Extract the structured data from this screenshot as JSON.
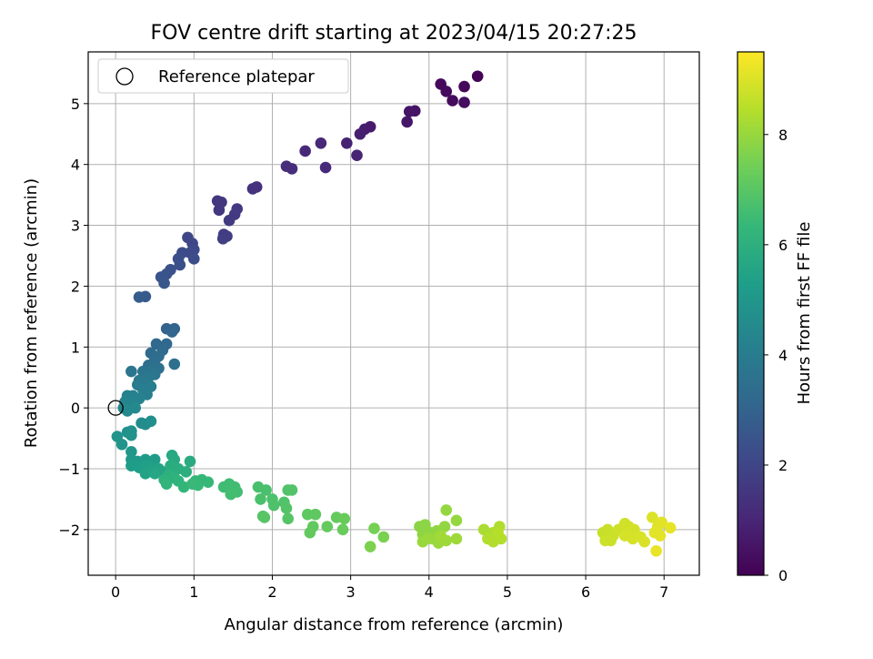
{
  "chart_data": {
    "type": "scatter",
    "title": "FOV centre drift starting at 2023/04/15 20:27:25",
    "xlabel": "Angular distance from reference (arcmin)",
    "ylabel": "Rotation from reference (arcmin)",
    "xlim": [
      -0.35,
      7.45
    ],
    "ylim": [
      -2.75,
      5.85
    ],
    "xticks": [
      "0",
      "1",
      "2",
      "3",
      "4",
      "5",
      "6",
      "7"
    ],
    "yticks": [
      "−2",
      "−1",
      "0",
      "1",
      "2",
      "3",
      "4",
      "5"
    ],
    "grid": true,
    "legend": {
      "placement": "top-left",
      "label": "Reference platepar"
    },
    "reference_point": {
      "x": 0,
      "y": 0
    },
    "colorbar": {
      "label": "Hours from first FF file",
      "colormap": "viridis",
      "range": [
        0,
        9.5
      ],
      "ticks": [
        "0",
        "2",
        "4",
        "6",
        "8"
      ],
      "colors": [
        "#440154",
        "#482878",
        "#3e4989",
        "#31688e",
        "#26828e",
        "#1f9e89",
        "#35b779",
        "#6ece58",
        "#b5de2b",
        "#fde725"
      ]
    },
    "points": [
      {
        "x": 4.62,
        "y": 5.45,
        "t": 0.1
      },
      {
        "x": 4.45,
        "y": 5.28,
        "t": 0.15
      },
      {
        "x": 4.15,
        "y": 5.32,
        "t": 0.2
      },
      {
        "x": 4.22,
        "y": 5.2,
        "t": 0.25
      },
      {
        "x": 4.3,
        "y": 5.05,
        "t": 0.3
      },
      {
        "x": 4.45,
        "y": 5.02,
        "t": 0.35
      },
      {
        "x": 3.82,
        "y": 4.88,
        "t": 0.5
      },
      {
        "x": 3.75,
        "y": 4.87,
        "t": 0.55
      },
      {
        "x": 3.72,
        "y": 4.7,
        "t": 0.6
      },
      {
        "x": 3.25,
        "y": 4.62,
        "t": 0.7
      },
      {
        "x": 3.18,
        "y": 4.58,
        "t": 0.75
      },
      {
        "x": 3.12,
        "y": 4.5,
        "t": 0.8
      },
      {
        "x": 2.95,
        "y": 4.35,
        "t": 0.9
      },
      {
        "x": 3.08,
        "y": 4.15,
        "t": 0.95
      },
      {
        "x": 2.62,
        "y": 4.35,
        "t": 1.05
      },
      {
        "x": 2.42,
        "y": 4.22,
        "t": 1.1
      },
      {
        "x": 2.68,
        "y": 3.95,
        "t": 1.15
      },
      {
        "x": 2.18,
        "y": 3.97,
        "t": 1.2
      },
      {
        "x": 2.25,
        "y": 3.93,
        "t": 1.25
      },
      {
        "x": 1.8,
        "y": 3.63,
        "t": 1.35
      },
      {
        "x": 1.75,
        "y": 3.6,
        "t": 1.4
      },
      {
        "x": 1.3,
        "y": 3.4,
        "t": 1.5
      },
      {
        "x": 1.35,
        "y": 3.38,
        "t": 1.52
      },
      {
        "x": 1.32,
        "y": 3.25,
        "t": 1.55
      },
      {
        "x": 1.55,
        "y": 3.27,
        "t": 1.6
      },
      {
        "x": 1.52,
        "y": 3.18,
        "t": 1.62
      },
      {
        "x": 1.45,
        "y": 3.08,
        "t": 1.65
      },
      {
        "x": 1.38,
        "y": 2.85,
        "t": 1.7
      },
      {
        "x": 1.42,
        "y": 2.82,
        "t": 1.72
      },
      {
        "x": 1.37,
        "y": 2.78,
        "t": 1.75
      },
      {
        "x": 0.92,
        "y": 2.8,
        "t": 2.0
      },
      {
        "x": 0.98,
        "y": 2.7,
        "t": 2.05
      },
      {
        "x": 1.0,
        "y": 2.6,
        "t": 2.1
      },
      {
        "x": 0.95,
        "y": 2.55,
        "t": 2.15
      },
      {
        "x": 0.85,
        "y": 2.55,
        "t": 2.2
      },
      {
        "x": 1.0,
        "y": 2.45,
        "t": 2.25
      },
      {
        "x": 0.8,
        "y": 2.45,
        "t": 2.3
      },
      {
        "x": 0.82,
        "y": 2.35,
        "t": 2.35
      },
      {
        "x": 0.7,
        "y": 2.27,
        "t": 2.4
      },
      {
        "x": 0.65,
        "y": 2.2,
        "t": 2.45
      },
      {
        "x": 0.58,
        "y": 2.15,
        "t": 2.5
      },
      {
        "x": 0.62,
        "y": 2.05,
        "t": 2.55
      },
      {
        "x": 0.38,
        "y": 1.83,
        "t": 2.7
      },
      {
        "x": 0.3,
        "y": 1.82,
        "t": 2.75
      },
      {
        "x": 0.65,
        "y": 1.3,
        "t": 3.0
      },
      {
        "x": 0.75,
        "y": 1.3,
        "t": 3.05
      },
      {
        "x": 0.72,
        "y": 1.25,
        "t": 3.1
      },
      {
        "x": 0.65,
        "y": 1.05,
        "t": 3.15
      },
      {
        "x": 0.52,
        "y": 1.05,
        "t": 3.2
      },
      {
        "x": 0.6,
        "y": 0.95,
        "t": 3.25
      },
      {
        "x": 0.45,
        "y": 0.9,
        "t": 3.3
      },
      {
        "x": 0.55,
        "y": 0.85,
        "t": 3.35
      },
      {
        "x": 0.5,
        "y": 0.78,
        "t": 3.4
      },
      {
        "x": 0.42,
        "y": 0.7,
        "t": 3.45
      },
      {
        "x": 0.75,
        "y": 0.72,
        "t": 3.5
      },
      {
        "x": 0.55,
        "y": 0.65,
        "t": 3.55
      },
      {
        "x": 0.45,
        "y": 0.62,
        "t": 3.6
      },
      {
        "x": 0.35,
        "y": 0.6,
        "t": 3.65
      },
      {
        "x": 0.2,
        "y": 0.6,
        "t": 3.7
      },
      {
        "x": 0.5,
        "y": 0.55,
        "t": 3.75
      },
      {
        "x": 0.42,
        "y": 0.5,
        "t": 3.8
      },
      {
        "x": 0.3,
        "y": 0.45,
        "t": 3.85
      },
      {
        "x": 0.38,
        "y": 0.4,
        "t": 3.9
      },
      {
        "x": 0.28,
        "y": 0.38,
        "t": 3.95
      },
      {
        "x": 0.45,
        "y": 0.35,
        "t": 4.0
      },
      {
        "x": 0.35,
        "y": 0.3,
        "t": 4.05
      },
      {
        "x": 0.4,
        "y": 0.22,
        "t": 4.1
      },
      {
        "x": 0.22,
        "y": 0.2,
        "t": 4.15
      },
      {
        "x": 0.15,
        "y": 0.2,
        "t": 4.2
      },
      {
        "x": 0.3,
        "y": 0.15,
        "t": 4.25
      },
      {
        "x": 0.12,
        "y": 0.1,
        "t": 4.3
      },
      {
        "x": 0.2,
        "y": 0.05,
        "t": 4.35
      },
      {
        "x": 0.1,
        "y": 0.0,
        "t": 4.4
      },
      {
        "x": 0.15,
        "y": -0.05,
        "t": 4.45
      },
      {
        "x": 0.25,
        "y": 0.0,
        "t": 4.5
      },
      {
        "x": 0.33,
        "y": -0.25,
        "t": 4.6
      },
      {
        "x": 0.38,
        "y": -0.27,
        "t": 4.65
      },
      {
        "x": 0.45,
        "y": -0.22,
        "t": 4.7
      },
      {
        "x": 0.15,
        "y": -0.4,
        "t": 4.75
      },
      {
        "x": 0.2,
        "y": -0.38,
        "t": 4.8
      },
      {
        "x": 0.2,
        "y": -0.45,
        "t": 4.85
      },
      {
        "x": 0.02,
        "y": -0.47,
        "t": 4.9
      },
      {
        "x": 0.08,
        "y": -0.6,
        "t": 4.95
      },
      {
        "x": 0.2,
        "y": -0.72,
        "t": 5.0
      },
      {
        "x": 0.2,
        "y": -0.85,
        "t": 5.05
      },
      {
        "x": 0.28,
        "y": -0.88,
        "t": 5.1
      },
      {
        "x": 0.38,
        "y": -0.85,
        "t": 5.15
      },
      {
        "x": 0.5,
        "y": -0.85,
        "t": 5.2
      },
      {
        "x": 0.2,
        "y": -0.95,
        "t": 5.25
      },
      {
        "x": 0.3,
        "y": -0.98,
        "t": 5.3
      },
      {
        "x": 0.4,
        "y": -0.95,
        "t": 5.35
      },
      {
        "x": 0.45,
        "y": -1.02,
        "t": 5.4
      },
      {
        "x": 0.38,
        "y": -1.08,
        "t": 5.45
      },
      {
        "x": 0.55,
        "y": -1.0,
        "t": 5.5
      },
      {
        "x": 0.6,
        "y": -1.05,
        "t": 5.55
      },
      {
        "x": 0.5,
        "y": -1.08,
        "t": 5.6
      },
      {
        "x": 0.72,
        "y": -0.78,
        "t": 5.7
      },
      {
        "x": 0.75,
        "y": -0.85,
        "t": 5.75
      },
      {
        "x": 0.95,
        "y": -0.88,
        "t": 5.8
      },
      {
        "x": 0.7,
        "y": -0.95,
        "t": 5.85
      },
      {
        "x": 0.8,
        "y": -1.0,
        "t": 5.9
      },
      {
        "x": 0.9,
        "y": -1.05,
        "t": 5.95
      },
      {
        "x": 0.68,
        "y": -1.1,
        "t": 6.0
      },
      {
        "x": 0.75,
        "y": -1.15,
        "t": 6.05
      },
      {
        "x": 0.62,
        "y": -1.18,
        "t": 6.1
      },
      {
        "x": 0.8,
        "y": -1.2,
        "t": 6.15
      },
      {
        "x": 0.65,
        "y": -1.25,
        "t": 6.2
      },
      {
        "x": 0.87,
        "y": -1.3,
        "t": 6.25
      },
      {
        "x": 1.02,
        "y": -1.2,
        "t": 6.3
      },
      {
        "x": 1.1,
        "y": -1.18,
        "t": 6.32
      },
      {
        "x": 1.18,
        "y": -1.22,
        "t": 6.35
      },
      {
        "x": 1.05,
        "y": -1.27,
        "t": 6.38
      },
      {
        "x": 0.98,
        "y": -1.25,
        "t": 6.4
      },
      {
        "x": 1.45,
        "y": -1.25,
        "t": 6.5
      },
      {
        "x": 1.38,
        "y": -1.3,
        "t": 6.52
      },
      {
        "x": 1.52,
        "y": -1.3,
        "t": 6.55
      },
      {
        "x": 1.55,
        "y": -1.38,
        "t": 6.58
      },
      {
        "x": 1.47,
        "y": -1.42,
        "t": 6.6
      },
      {
        "x": 1.82,
        "y": -1.3,
        "t": 6.7
      },
      {
        "x": 1.92,
        "y": -1.35,
        "t": 6.72
      },
      {
        "x": 1.85,
        "y": -1.5,
        "t": 6.75
      },
      {
        "x": 2.0,
        "y": -1.5,
        "t": 6.78
      },
      {
        "x": 2.02,
        "y": -1.6,
        "t": 6.8
      },
      {
        "x": 2.15,
        "y": -1.55,
        "t": 6.82
      },
      {
        "x": 2.2,
        "y": -1.35,
        "t": 6.85
      },
      {
        "x": 2.25,
        "y": -1.35,
        "t": 6.87
      },
      {
        "x": 2.18,
        "y": -1.65,
        "t": 6.9
      },
      {
        "x": 2.2,
        "y": -1.82,
        "t": 6.92
      },
      {
        "x": 1.88,
        "y": -1.78,
        "t": 6.95
      },
      {
        "x": 1.9,
        "y": -1.8,
        "t": 6.97
      },
      {
        "x": 2.45,
        "y": -1.75,
        "t": 7.1
      },
      {
        "x": 2.55,
        "y": -1.75,
        "t": 7.12
      },
      {
        "x": 2.52,
        "y": -1.95,
        "t": 7.15
      },
      {
        "x": 2.48,
        "y": -2.05,
        "t": 7.18
      },
      {
        "x": 2.7,
        "y": -1.95,
        "t": 7.2
      },
      {
        "x": 2.82,
        "y": -1.8,
        "t": 7.22
      },
      {
        "x": 2.92,
        "y": -1.82,
        "t": 7.25
      },
      {
        "x": 2.9,
        "y": -2.0,
        "t": 7.27
      },
      {
        "x": 3.3,
        "y": -1.98,
        "t": 7.5
      },
      {
        "x": 3.42,
        "y": -2.12,
        "t": 7.55
      },
      {
        "x": 3.25,
        "y": -2.28,
        "t": 7.6
      },
      {
        "x": 3.88,
        "y": -1.95,
        "t": 7.8
      },
      {
        "x": 3.95,
        "y": -1.92,
        "t": 7.82
      },
      {
        "x": 4.02,
        "y": -2.05,
        "t": 7.85
      },
      {
        "x": 3.92,
        "y": -2.08,
        "t": 7.88
      },
      {
        "x": 4.1,
        "y": -2.02,
        "t": 7.9
      },
      {
        "x": 4.2,
        "y": -1.95,
        "t": 7.92
      },
      {
        "x": 4.22,
        "y": -1.68,
        "t": 7.95
      },
      {
        "x": 4.35,
        "y": -1.85,
        "t": 7.97
      },
      {
        "x": 4.05,
        "y": -2.15,
        "t": 8.0
      },
      {
        "x": 3.92,
        "y": -2.2,
        "t": 8.02
      },
      {
        "x": 3.98,
        "y": -2.15,
        "t": 8.05
      },
      {
        "x": 4.12,
        "y": -2.22,
        "t": 8.08
      },
      {
        "x": 4.22,
        "y": -2.18,
        "t": 8.1
      },
      {
        "x": 4.35,
        "y": -2.15,
        "t": 8.12
      },
      {
        "x": 4.15,
        "y": -2.1,
        "t": 8.15
      },
      {
        "x": 4.7,
        "y": -2.0,
        "t": 8.3
      },
      {
        "x": 4.82,
        "y": -2.05,
        "t": 8.32
      },
      {
        "x": 4.9,
        "y": -1.95,
        "t": 8.35
      },
      {
        "x": 4.75,
        "y": -2.15,
        "t": 8.38
      },
      {
        "x": 4.82,
        "y": -2.2,
        "t": 8.4
      },
      {
        "x": 4.92,
        "y": -2.15,
        "t": 8.42
      },
      {
        "x": 4.88,
        "y": -2.05,
        "t": 8.45
      },
      {
        "x": 6.22,
        "y": -2.05,
        "t": 8.7
      },
      {
        "x": 6.28,
        "y": -2.0,
        "t": 8.72
      },
      {
        "x": 6.35,
        "y": -2.1,
        "t": 8.75
      },
      {
        "x": 6.25,
        "y": -2.18,
        "t": 8.78
      },
      {
        "x": 6.42,
        "y": -2.0,
        "t": 8.8
      },
      {
        "x": 6.5,
        "y": -1.9,
        "t": 8.82
      },
      {
        "x": 6.55,
        "y": -1.95,
        "t": 8.85
      },
      {
        "x": 6.62,
        "y": -2.0,
        "t": 8.88
      },
      {
        "x": 6.5,
        "y": -2.1,
        "t": 8.9
      },
      {
        "x": 6.6,
        "y": -2.15,
        "t": 8.92
      },
      {
        "x": 6.7,
        "y": -2.12,
        "t": 8.95
      },
      {
        "x": 6.75,
        "y": -2.2,
        "t": 8.97
      },
      {
        "x": 6.85,
        "y": -1.8,
        "t": 9.0
      },
      {
        "x": 6.92,
        "y": -1.95,
        "t": 9.05
      },
      {
        "x": 6.97,
        "y": -1.88,
        "t": 9.08
      },
      {
        "x": 6.88,
        "y": -2.05,
        "t": 9.1
      },
      {
        "x": 6.95,
        "y": -2.1,
        "t": 9.12
      },
      {
        "x": 7.08,
        "y": -1.97,
        "t": 9.15
      },
      {
        "x": 6.9,
        "y": -2.35,
        "t": 9.2
      },
      {
        "x": 6.32,
        "y": -2.18,
        "t": 8.76
      }
    ]
  }
}
